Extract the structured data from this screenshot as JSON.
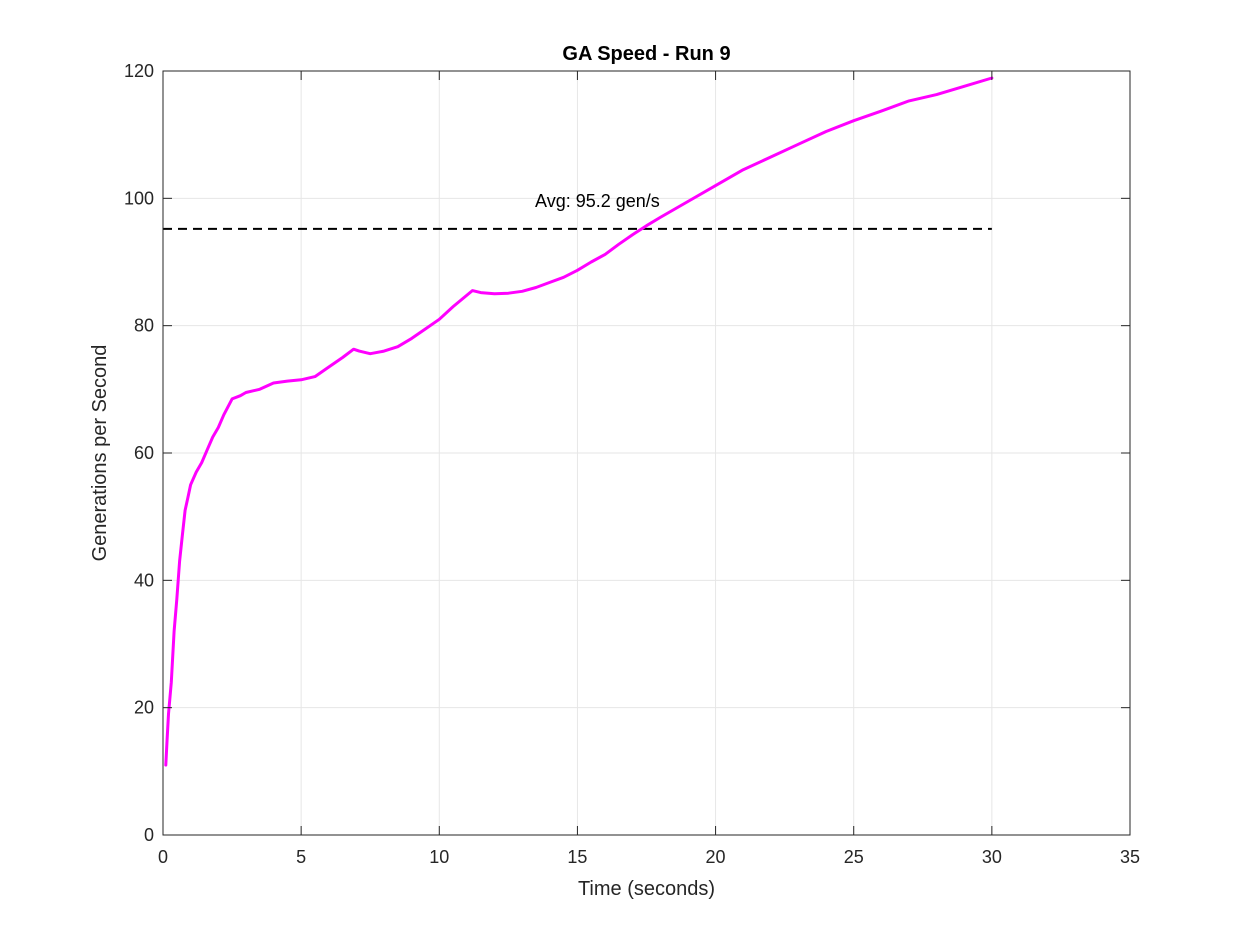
{
  "chart_data": {
    "type": "line",
    "title": "GA Speed - Run 9",
    "xlabel": "Time (seconds)",
    "ylabel": "Generations per Second",
    "xlim": [
      0,
      35
    ],
    "ylim": [
      0,
      120
    ],
    "xticks": [
      0,
      5,
      10,
      15,
      20,
      25,
      30,
      35
    ],
    "yticks": [
      0,
      20,
      40,
      60,
      80,
      100,
      120
    ],
    "xtick_labels": [
      "0",
      "5",
      "10",
      "15",
      "20",
      "25",
      "30",
      "35"
    ],
    "ytick_labels": [
      "0",
      "20",
      "40",
      "60",
      "80",
      "100",
      "120"
    ],
    "grid": true,
    "series": [
      {
        "color": "#ff00ff",
        "x": [
          0.1,
          0.15,
          0.2,
          0.3,
          0.4,
          0.5,
          0.6,
          0.7,
          0.8,
          0.9,
          1.0,
          1.2,
          1.4,
          1.6,
          1.8,
          2.0,
          2.2,
          2.5,
          2.8,
          3.0,
          3.5,
          4.0,
          4.5,
          5.0,
          5.5,
          6.0,
          6.5,
          6.9,
          7.1,
          7.5,
          8.0,
          8.5,
          9.0,
          9.5,
          10.0,
          10.5,
          11.2,
          11.5,
          12.0,
          12.5,
          13.0,
          13.5,
          14.0,
          14.5,
          15.0,
          15.5,
          16.0,
          16.5,
          17.0,
          17.5,
          18.0,
          19.0,
          20.0,
          21.0,
          22.0,
          23.0,
          24.0,
          25.0,
          26.0,
          27.0,
          28.0,
          29.0,
          30.0
        ],
        "y": [
          11,
          15,
          19,
          24,
          32,
          37,
          43,
          47,
          51,
          53,
          55,
          57,
          58.5,
          60.5,
          62.5,
          64,
          66,
          68.5,
          69,
          69.5,
          70,
          71,
          71.3,
          71.5,
          72,
          73.5,
          75,
          76.3,
          76,
          75.6,
          76,
          76.7,
          78,
          79.5,
          81,
          83,
          85.5,
          85.2,
          85,
          85.1,
          85.4,
          86,
          86.8,
          87.6,
          88.7,
          90,
          91.2,
          92.8,
          94.3,
          95.7,
          97,
          99.5,
          102,
          104.5,
          106.5,
          108.5,
          110.5,
          112.2,
          113.7,
          115.3,
          116.3,
          117.6,
          118.9
        ]
      }
    ],
    "reference_lines": [
      {
        "y": 95.2,
        "x_range": [
          0,
          30
        ],
        "style": "dashed",
        "color": "#000000",
        "label": "Avg: 95.2 gen/s"
      }
    ]
  }
}
